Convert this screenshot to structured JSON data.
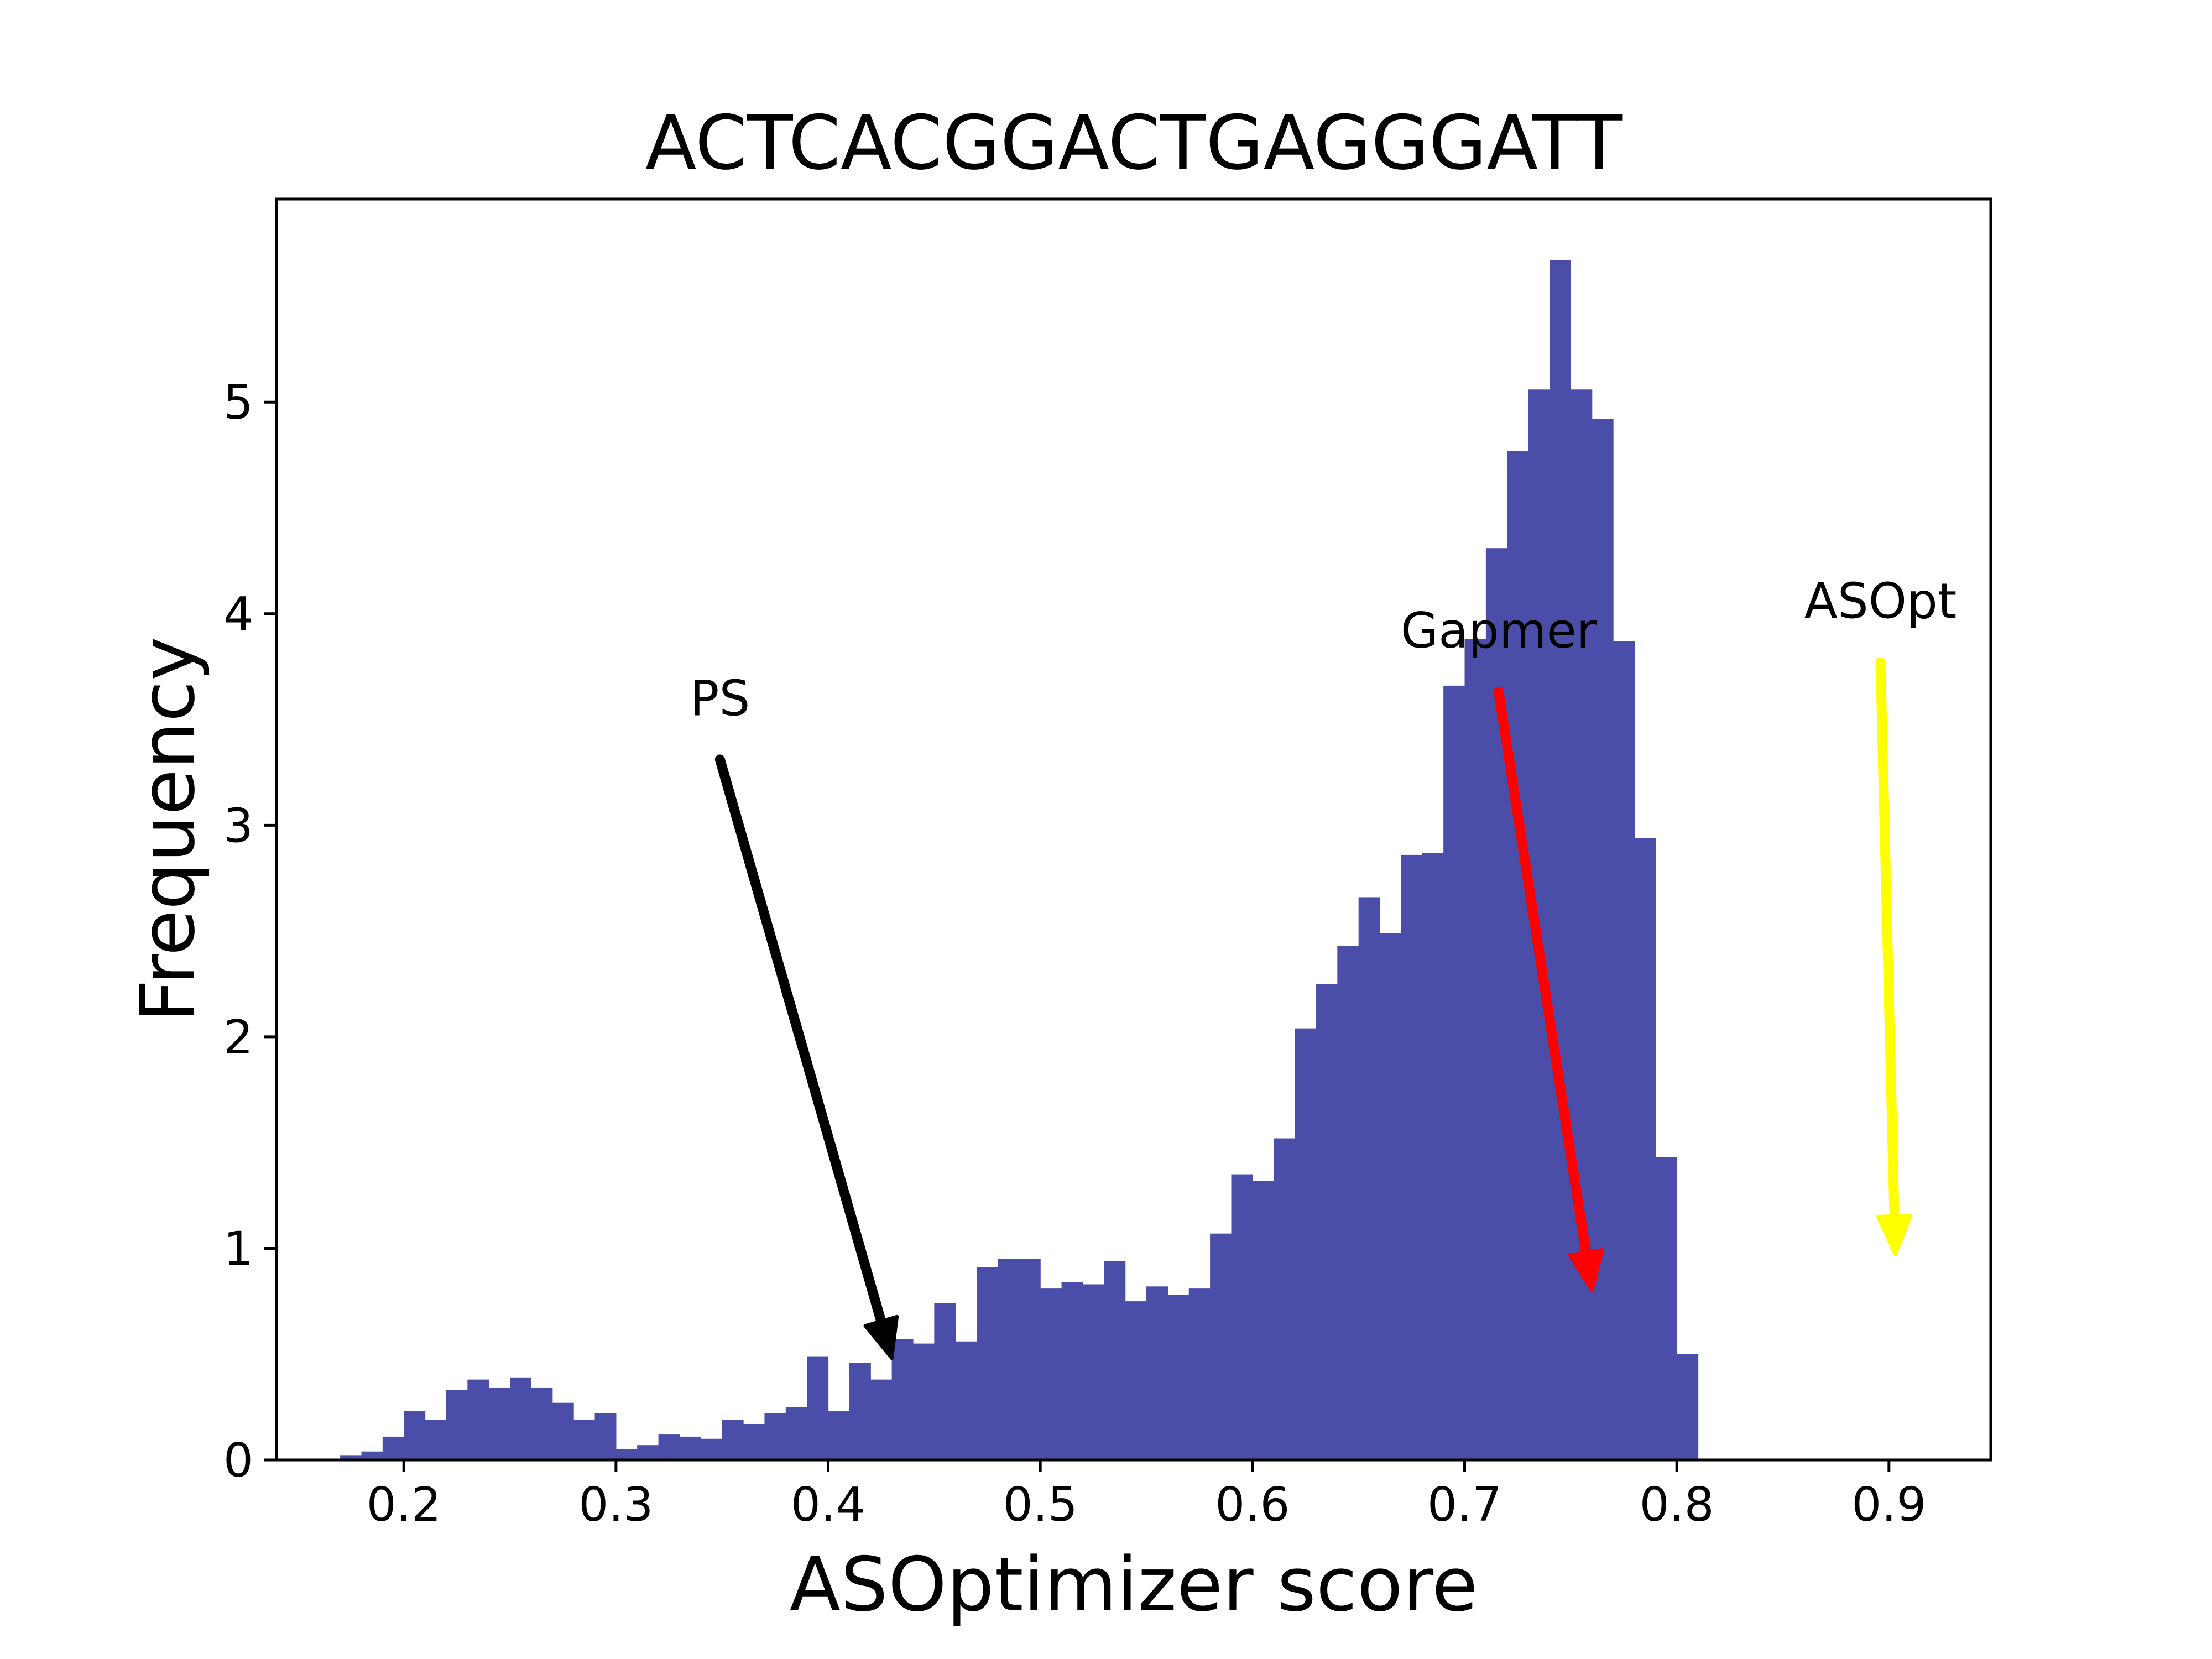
{
  "chart_data": {
    "type": "bar",
    "title": "ACTCACGGACTGAGGGATT",
    "xlabel": "ASOptimizer score",
    "ylabel": "Frequency",
    "xlim": [
      0.14,
      0.948
    ],
    "ylim": [
      0,
      5.96
    ],
    "bin_width": 0.01,
    "bins": [
      {
        "x": 0.175,
        "y": 0.02
      },
      {
        "x": 0.185,
        "y": 0.04
      },
      {
        "x": 0.195,
        "y": 0.11
      },
      {
        "x": 0.205,
        "y": 0.23
      },
      {
        "x": 0.215,
        "y": 0.19
      },
      {
        "x": 0.225,
        "y": 0.33
      },
      {
        "x": 0.235,
        "y": 0.38
      },
      {
        "x": 0.245,
        "y": 0.34
      },
      {
        "x": 0.255,
        "y": 0.39
      },
      {
        "x": 0.265,
        "y": 0.34
      },
      {
        "x": 0.275,
        "y": 0.27
      },
      {
        "x": 0.285,
        "y": 0.19
      },
      {
        "x": 0.295,
        "y": 0.22
      },
      {
        "x": 0.305,
        "y": 0.05
      },
      {
        "x": 0.315,
        "y": 0.07
      },
      {
        "x": 0.325,
        "y": 0.12
      },
      {
        "x": 0.335,
        "y": 0.11
      },
      {
        "x": 0.345,
        "y": 0.1
      },
      {
        "x": 0.355,
        "y": 0.19
      },
      {
        "x": 0.365,
        "y": 0.17
      },
      {
        "x": 0.375,
        "y": 0.22
      },
      {
        "x": 0.385,
        "y": 0.25
      },
      {
        "x": 0.395,
        "y": 0.49
      },
      {
        "x": 0.405,
        "y": 0.23
      },
      {
        "x": 0.415,
        "y": 0.46
      },
      {
        "x": 0.425,
        "y": 0.38
      },
      {
        "x": 0.435,
        "y": 0.57
      },
      {
        "x": 0.445,
        "y": 0.55
      },
      {
        "x": 0.455,
        "y": 0.74
      },
      {
        "x": 0.465,
        "y": 0.56
      },
      {
        "x": 0.475,
        "y": 0.91
      },
      {
        "x": 0.485,
        "y": 0.95
      },
      {
        "x": 0.495,
        "y": 0.95
      },
      {
        "x": 0.505,
        "y": 0.81
      },
      {
        "x": 0.515,
        "y": 0.84
      },
      {
        "x": 0.525,
        "y": 0.83
      },
      {
        "x": 0.535,
        "y": 0.94
      },
      {
        "x": 0.545,
        "y": 0.75
      },
      {
        "x": 0.555,
        "y": 0.82
      },
      {
        "x": 0.565,
        "y": 0.78
      },
      {
        "x": 0.575,
        "y": 0.81
      },
      {
        "x": 0.585,
        "y": 1.07
      },
      {
        "x": 0.595,
        "y": 1.35
      },
      {
        "x": 0.605,
        "y": 1.32
      },
      {
        "x": 0.615,
        "y": 1.52
      },
      {
        "x": 0.625,
        "y": 2.04
      },
      {
        "x": 0.635,
        "y": 2.25
      },
      {
        "x": 0.645,
        "y": 2.43
      },
      {
        "x": 0.655,
        "y": 2.66
      },
      {
        "x": 0.665,
        "y": 2.49
      },
      {
        "x": 0.675,
        "y": 2.86
      },
      {
        "x": 0.685,
        "y": 2.87
      },
      {
        "x": 0.695,
        "y": 3.66
      },
      {
        "x": 0.705,
        "y": 3.88
      },
      {
        "x": 0.715,
        "y": 4.31
      },
      {
        "x": 0.725,
        "y": 4.77
      },
      {
        "x": 0.735,
        "y": 5.06
      },
      {
        "x": 0.745,
        "y": 5.67
      },
      {
        "x": 0.755,
        "y": 5.06
      },
      {
        "x": 0.765,
        "y": 4.92
      },
      {
        "x": 0.775,
        "y": 3.87
      },
      {
        "x": 0.785,
        "y": 2.94
      },
      {
        "x": 0.795,
        "y": 1.43
      },
      {
        "x": 0.805,
        "y": 0.5
      }
    ],
    "bar_color": "#4b4ea9",
    "xticks": [
      0.2,
      0.3,
      0.4,
      0.5,
      0.6,
      0.7,
      0.8,
      0.9
    ],
    "xtick_labels": [
      "0.2",
      "0.3",
      "0.4",
      "0.5",
      "0.6",
      "0.7",
      "0.8",
      "0.9"
    ],
    "yticks": [
      0,
      1,
      2,
      3,
      4,
      5
    ],
    "ytick_labels": [
      "0",
      "1",
      "2",
      "3",
      "4",
      "5"
    ],
    "annotations": [
      {
        "label": "PS",
        "text_x": 0.349,
        "text_y": 3.52,
        "tip_x": 0.43,
        "tip_y": 0.48,
        "color": "#000000"
      },
      {
        "label": "Gapmer",
        "text_x": 0.716,
        "text_y": 3.84,
        "tip_x": 0.76,
        "tip_y": 0.8,
        "color": "#ff0000"
      },
      {
        "label": "ASOpt",
        "text_x": 0.896,
        "text_y": 3.98,
        "tip_x": 0.903,
        "tip_y": 0.97,
        "color": "#ffff00"
      }
    ],
    "grid": false,
    "legend": "none"
  }
}
